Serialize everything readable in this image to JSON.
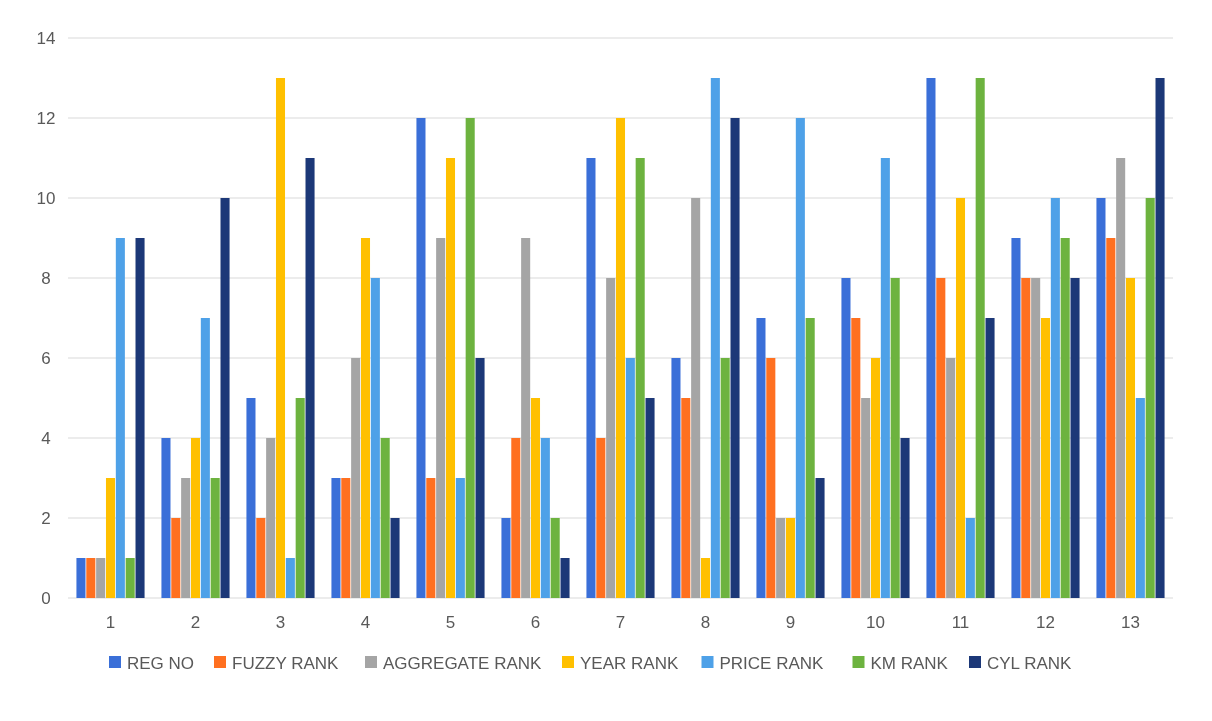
{
  "chart_data": {
    "type": "bar",
    "categories": [
      "1",
      "2",
      "3",
      "4",
      "5",
      "6",
      "7",
      "8",
      "9",
      "10",
      "11",
      "12",
      "13"
    ],
    "series": [
      {
        "name": "REG NO",
        "color": "#3a6fd8",
        "values": [
          1,
          4,
          5,
          3,
          12,
          2,
          11,
          6,
          7,
          8,
          13,
          9,
          10
        ]
      },
      {
        "name": "FUZZY RANK",
        "color": "#ff7020",
        "values": [
          1,
          2,
          2,
          3,
          3,
          4,
          4,
          5,
          6,
          7,
          8,
          8,
          9
        ]
      },
      {
        "name": "AGGREGATE RANK",
        "color": "#a5a5a5",
        "values": [
          1,
          3,
          4,
          6,
          9,
          9,
          8,
          10,
          2,
          5,
          6,
          8,
          11
        ]
      },
      {
        "name": "YEAR RANK",
        "color": "#ffc000",
        "values": [
          3,
          4,
          13,
          9,
          11,
          5,
          12,
          1,
          2,
          6,
          10,
          7,
          8
        ]
      },
      {
        "name": "PRICE RANK",
        "color": "#4ea1e8",
        "values": [
          9,
          7,
          1,
          8,
          3,
          4,
          6,
          13,
          12,
          11,
          2,
          10,
          5
        ]
      },
      {
        "name": "KM RANK",
        "color": "#6db33f",
        "values": [
          1,
          3,
          5,
          4,
          12,
          2,
          11,
          6,
          7,
          8,
          13,
          9,
          10
        ]
      },
      {
        "name": "CYL RANK",
        "color": "#1c3878",
        "values": [
          9,
          10,
          11,
          2,
          6,
          1,
          5,
          12,
          3,
          4,
          7,
          8,
          13
        ]
      }
    ],
    "ylim": [
      0,
      14
    ],
    "yticks": [
      0,
      2,
      4,
      6,
      8,
      10,
      12,
      14
    ],
    "grid": "y",
    "legend": "bottom"
  }
}
